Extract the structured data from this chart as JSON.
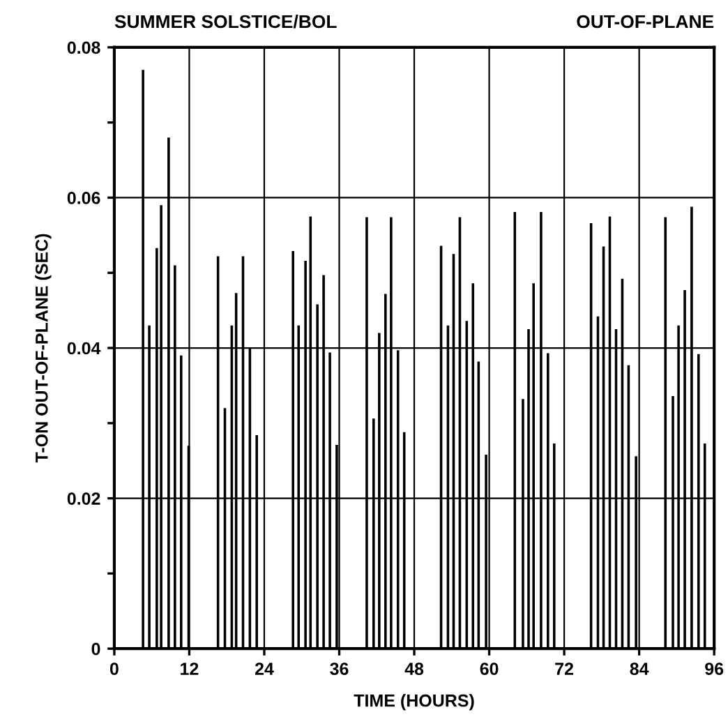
{
  "chart_data": {
    "type": "bar",
    "title": "SUMMER SOLSTICE/BOL",
    "subtitle": "OUT-OF-PLANE",
    "xlabel": "TIME (HOURS)",
    "ylabel": "T-ON OUT-OF-PLANE (SEC)",
    "x": [
      4.6,
      5.6,
      6.8,
      7.5,
      8.7,
      9.7,
      10.7,
      11.9,
      16.6,
      17.7,
      18.8,
      19.5,
      20.6,
      21.7,
      22.8,
      28.6,
      29.5,
      30.6,
      31.4,
      32.5,
      33.5,
      34.5,
      35.6,
      40.4,
      41.5,
      42.4,
      43.4,
      44.3,
      45.4,
      46.4,
      52.3,
      53.4,
      54.3,
      55.3,
      56.4,
      57.4,
      58.3,
      59.5,
      64.1,
      65.4,
      66.3,
      67.1,
      68.3,
      69.4,
      70.4,
      76.3,
      77.4,
      78.3,
      79.3,
      80.3,
      81.3,
      82.3,
      83.5,
      88.2,
      89.4,
      90.3,
      91.3,
      92.4,
      93.5,
      94.5
    ],
    "series": [
      {
        "color": "#000000",
        "values": [
          0.077,
          0.043,
          0.0533,
          0.059,
          0.068,
          0.051,
          0.039,
          0.027,
          0.0522,
          0.032,
          0.043,
          0.0473,
          0.0522,
          0.04,
          0.0284,
          0.0529,
          0.043,
          0.0516,
          0.0575,
          0.0458,
          0.0497,
          0.0394,
          0.0271,
          0.0574,
          0.0306,
          0.042,
          0.0472,
          0.0574,
          0.0397,
          0.0288,
          0.0536,
          0.043,
          0.0525,
          0.0574,
          0.0436,
          0.0486,
          0.0382,
          0.0258,
          0.0581,
          0.0332,
          0.0425,
          0.0486,
          0.0581,
          0.0393,
          0.0273,
          0.0566,
          0.0442,
          0.0535,
          0.0575,
          0.0425,
          0.0492,
          0.0377,
          0.0256,
          0.0574,
          0.0336,
          0.043,
          0.0477,
          0.0588,
          0.0392,
          0.0273
        ]
      }
    ],
    "xlim": [
      0,
      96
    ],
    "xticks": [
      0,
      12,
      24,
      36,
      48,
      60,
      72,
      84,
      96
    ],
    "ylim": [
      0,
      0.08
    ],
    "yticks": [
      0,
      {
        "value": 0.01,
        "label": null
      },
      0.02,
      {
        "value": 0.03,
        "label": null
      },
      0.04,
      {
        "value": 0.05,
        "label": null
      },
      0.06,
      {
        "value": 0.07,
        "label": null
      },
      0.08
    ],
    "grid": true
  }
}
